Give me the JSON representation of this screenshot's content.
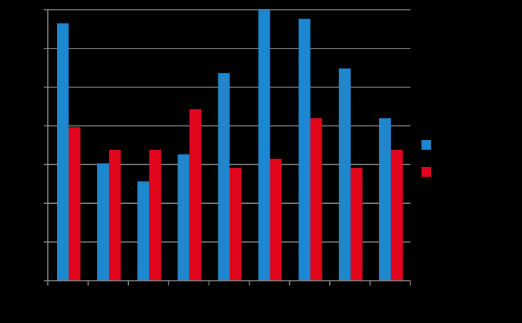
{
  "chart_data": {
    "type": "bar",
    "title": "",
    "xlabel": "",
    "ylabel": "",
    "categories": [
      "",
      "",
      "",
      "",
      "",
      "",
      "",
      "",
      ""
    ],
    "ylim": [
      0,
      60
    ],
    "grid": true,
    "legend_position": "right",
    "series": [
      {
        "color": "#1f86d0",
        "values": [
          57,
          26,
          22,
          28,
          46,
          60,
          58,
          47,
          36
        ]
      },
      {
        "color": "#e2061c",
        "values": [
          34,
          29,
          29,
          38,
          25,
          27,
          36,
          25,
          29
        ]
      }
    ]
  }
}
